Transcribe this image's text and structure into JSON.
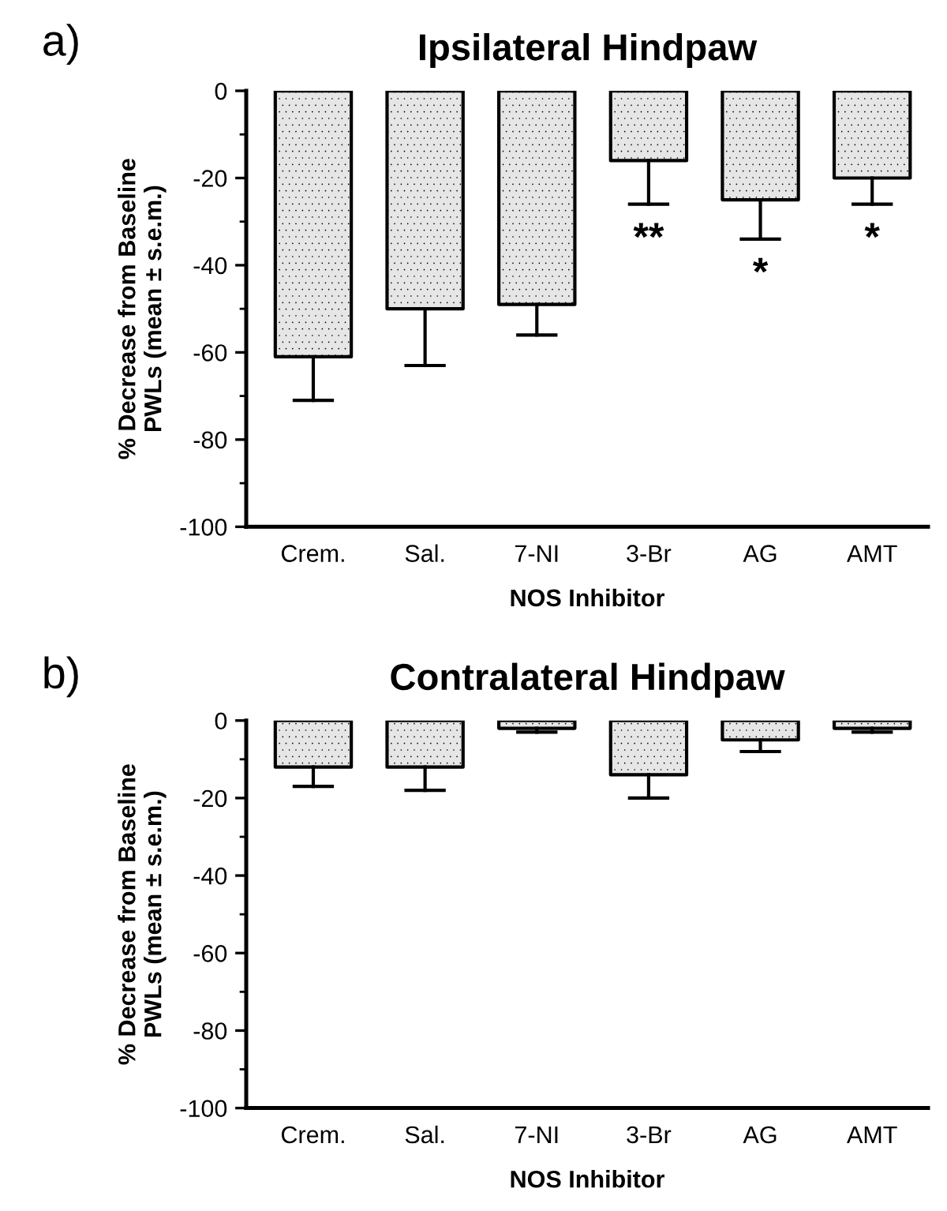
{
  "chart_data": [
    {
      "type": "bar",
      "title": "Ipsilateral Hindpaw",
      "xlabel": "NOS Inhibitor",
      "ylabel": "% Decrease from Baseline\nPWLs (mean ± s.e.m.)",
      "annotations": [
        "a)",
        "**",
        "*",
        "*"
      ],
      "categories": [
        "Crem.",
        "Sal.",
        "7-NI",
        "3-Br",
        "AG",
        "AMT"
      ],
      "values": [
        -61,
        -50,
        -49,
        -16,
        -25,
        -20
      ],
      "errors": [
        [
          -71,
          -61
        ],
        [
          -63,
          -50
        ],
        [
          -56,
          -49
        ],
        [
          -26,
          -16
        ],
        [
          -34,
          -25
        ],
        [
          -26,
          -20
        ]
      ],
      "color": "#e6e6e6",
      "ylim": [
        -100,
        0
      ],
      "yticks": [
        0,
        {
          "value": -10,
          "label": null
        },
        -20,
        {
          "value": -30,
          "label": null
        },
        -40,
        {
          "value": -50,
          "label": null
        },
        -60,
        {
          "value": -70,
          "label": null
        },
        -80,
        {
          "value": -90,
          "label": null
        },
        -100
      ],
      "grid": false,
      "legend": false
    },
    {
      "type": "bar",
      "title": "Contralateral Hindpaw",
      "xlabel": "NOS Inhibitor",
      "ylabel": "% Decrease from Baseline\nPWLs (mean ± s.e.m.)",
      "annotations": [
        "b)"
      ],
      "categories": [
        "Crem.",
        "Sal.",
        "7-NI",
        "3-Br",
        "AG",
        "AMT"
      ],
      "values": [
        -12,
        -12,
        -2,
        -14,
        -5,
        -2
      ],
      "errors": [
        [
          -17,
          -12
        ],
        [
          -18,
          -12
        ],
        [
          -3,
          -2
        ],
        [
          -20,
          -14
        ],
        [
          -8,
          -5
        ],
        [
          -3,
          -2
        ]
      ],
      "color": "#e6e6e6",
      "ylim": [
        -100,
        0
      ],
      "yticks": [
        0,
        {
          "value": -10,
          "label": null
        },
        -20,
        {
          "value": -30,
          "label": null
        },
        -40,
        {
          "value": -50,
          "label": null
        },
        -60,
        {
          "value": -70,
          "label": null
        },
        -80,
        {
          "value": -90,
          "label": null
        },
        -100
      ],
      "grid": false,
      "legend": false
    }
  ]
}
